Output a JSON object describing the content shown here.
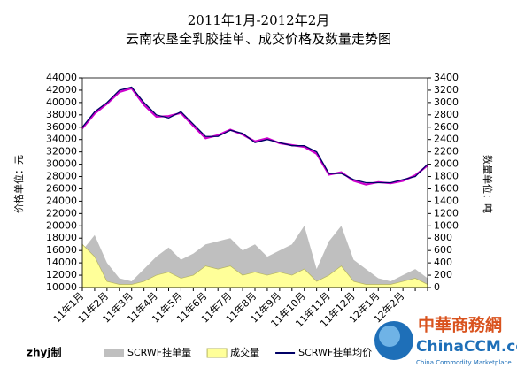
{
  "chart_data": {
    "type": "combo",
    "title": "2011年1月-2012年2月",
    "subtitle": "云南农垦全乳胶挂单、成交价格及数量走势图",
    "y_label": "价格单位：元",
    "y2_label": "数量单位：吨",
    "credit": "zhyj制",
    "categories": [
      "11年1月",
      null,
      "11年2月",
      null,
      "11年3月",
      null,
      "11年4月",
      null,
      "11年5月",
      null,
      "11年6月",
      null,
      "11年7月",
      null,
      "11年8月",
      null,
      "11年9月",
      null,
      "11年10月",
      null,
      "11年11月",
      null,
      "11年12月",
      null,
      "12年1月",
      null,
      "12年2月",
      null,
      null
    ],
    "ylim": [
      10000,
      44000
    ],
    "yticks": [
      10000,
      12000,
      14000,
      16000,
      18000,
      20000,
      22000,
      24000,
      26000,
      28000,
      30000,
      32000,
      34000,
      36000,
      38000,
      40000,
      42000,
      44000
    ],
    "y2lim": [
      0,
      3400
    ],
    "y2ticks": [
      0,
      200,
      400,
      600,
      800,
      1000,
      1200,
      1400,
      1600,
      1800,
      2000,
      2200,
      2400,
      2600,
      2800,
      3000,
      3200,
      3400
    ],
    "series": [
      {
        "name": "SCRWF挂单量",
        "kind": "area",
        "axis": "y2",
        "color": "#bfbfbf",
        "values": [
          600,
          850,
          400,
          150,
          100,
          300,
          500,
          650,
          450,
          550,
          700,
          750,
          800,
          600,
          700,
          500,
          600,
          700,
          1000,
          300,
          750,
          1000,
          450,
          300,
          150,
          100,
          200,
          300,
          150
        ]
      },
      {
        "name": "成交量",
        "kind": "area",
        "axis": "y2",
        "color": "#ffff99",
        "values": [
          700,
          500,
          100,
          50,
          50,
          100,
          200,
          250,
          150,
          200,
          350,
          300,
          350,
          200,
          250,
          200,
          250,
          200,
          300,
          100,
          200,
          350,
          100,
          50,
          50,
          50,
          100,
          150,
          50
        ]
      },
      {
        "kind": "line",
        "color": "#cc00cc",
        "values": [
          35800,
          38200,
          39800,
          41700,
          42300,
          39600,
          37700,
          37800,
          38300,
          36200,
          34200,
          34700,
          35600,
          34800,
          33700,
          34200,
          33400,
          33100,
          32800,
          31700,
          28300,
          28700,
          27300,
          26700,
          27100,
          26900,
          27300,
          28200,
          29800
        ]
      },
      {
        "name": "SCRWF挂单均价",
        "kind": "line",
        "color": "#000066",
        "values": [
          36000,
          38500,
          40000,
          42000,
          42500,
          40000,
          38000,
          37500,
          38500,
          36500,
          34500,
          34500,
          35500,
          35000,
          33500,
          34000,
          33500,
          33000,
          33000,
          32000,
          28500,
          28500,
          27500,
          27000,
          27000,
          27000,
          27500,
          28000,
          30000
        ]
      }
    ]
  },
  "logo": {
    "name": "中華商務網",
    "site": "ChinaCCM.com",
    "tagline": "China Commodity Marketplace"
  }
}
